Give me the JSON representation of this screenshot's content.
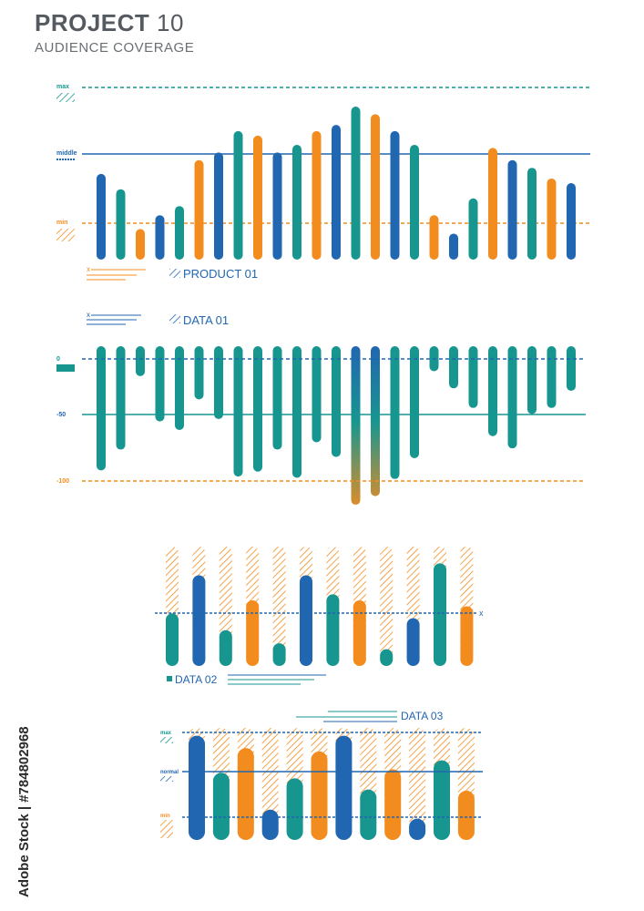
{
  "header": {
    "title_bold": "PROJECT",
    "title_num": "10",
    "subtitle": "AUDIENCE COVERAGE"
  },
  "colors": {
    "blue": "#2166b0",
    "teal": "#179690",
    "orange": "#f28c1e",
    "gray": "#7a7f84"
  },
  "watermark": "Adobe Stock | #784802968",
  "chart_data": [
    {
      "type": "bar",
      "label": "PRODUCT 01",
      "levels": {
        "max": "max",
        "middle": "middle",
        "min": "min"
      },
      "values": [
        0.56,
        0.46,
        0.2,
        0.29,
        0.35,
        0.65,
        0.7,
        0.84,
        0.81,
        0.7,
        0.75,
        0.84,
        0.88,
        1.0,
        0.95,
        0.84,
        0.75,
        0.29,
        0.17,
        0.4,
        0.73,
        0.65,
        0.6,
        0.53,
        0.5
      ],
      "colors": [
        "blue",
        "teal",
        "orange",
        "blue",
        "teal",
        "orange",
        "blue",
        "teal",
        "orange",
        "blue",
        "teal",
        "orange",
        "blue",
        "teal",
        "orange",
        "blue",
        "teal",
        "orange",
        "blue",
        "teal",
        "orange",
        "blue",
        "teal",
        "orange",
        "blue"
      ]
    },
    {
      "type": "bar",
      "label": "DATA 01",
      "axis_labels": [
        "0",
        "-50",
        "-100"
      ],
      "values": [
        -91,
        -74,
        -14,
        -51,
        -58,
        -33,
        -49,
        -96,
        -92,
        -74,
        -97,
        -68,
        -80,
        -119,
        -112,
        -98,
        -81,
        -10,
        -24,
        -40,
        -63,
        -73,
        -45,
        -40,
        -26
      ]
    },
    {
      "type": "bar",
      "label": "DATA 02",
      "marker": "x",
      "values": [
        0.44,
        0.76,
        0.3,
        0.55,
        0.19,
        0.76,
        0.6,
        0.55,
        0.14,
        0.4,
        0.86,
        0.5
      ],
      "colors": [
        "teal",
        "blue",
        "teal",
        "orange",
        "teal",
        "blue",
        "teal",
        "orange",
        "teal",
        "blue",
        "teal",
        "orange"
      ]
    },
    {
      "type": "bar",
      "label": "DATA 03",
      "levels": {
        "max": "max",
        "normal": "normal",
        "min": "min"
      },
      "values": [
        0.93,
        0.6,
        0.82,
        0.27,
        0.55,
        0.79,
        0.93,
        0.45,
        0.63,
        0.19,
        0.71,
        0.44
      ],
      "colors": [
        "blue",
        "teal",
        "orange",
        "blue",
        "teal",
        "orange",
        "blue",
        "teal",
        "orange",
        "blue",
        "teal",
        "orange"
      ]
    }
  ]
}
